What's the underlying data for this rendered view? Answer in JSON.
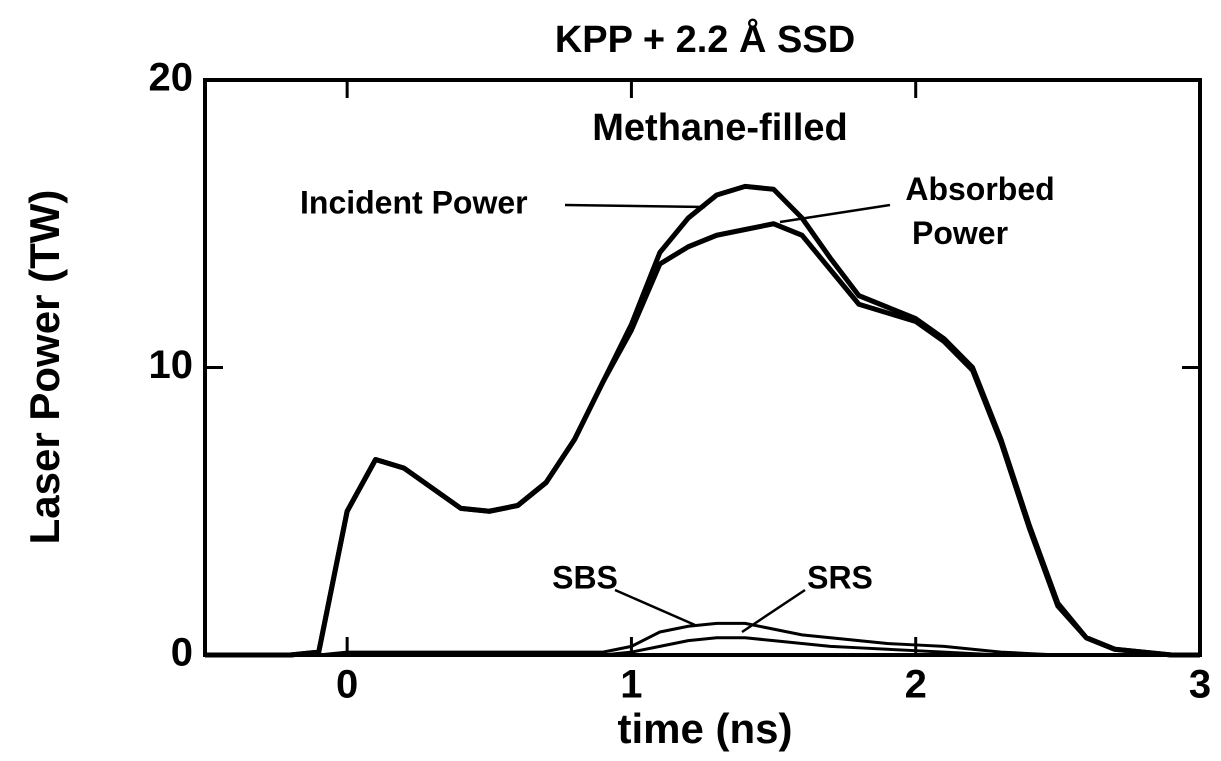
{
  "chart_data": {
    "type": "line",
    "title": "KPP + 2.2 Å SSD",
    "annotation": "Methane-filled",
    "x_label": "time (ns)",
    "y_label": "Laser Power (TW)",
    "x": [
      -0.5,
      -0.4,
      -0.3,
      -0.2,
      -0.1,
      0,
      0.1,
      0.2,
      0.3,
      0.4,
      0.5,
      0.6,
      0.7,
      0.8,
      0.9,
      1.0,
      1.1,
      1.2,
      1.3,
      1.4,
      1.5,
      1.6,
      1.7,
      1.8,
      1.9,
      2.0,
      2.1,
      2.2,
      2.3,
      2.4,
      2.5,
      2.6,
      2.7,
      2.8,
      2.9,
      3.0
    ],
    "series": [
      {
        "name": "Incident Power",
        "color": "#000000",
        "values": [
          0,
          0,
          0,
          0,
          0.1,
          5,
          6.8,
          6.5,
          5.8,
          5.1,
          5.0,
          5.2,
          6.0,
          7.5,
          9.5,
          11.5,
          14.0,
          15.2,
          16.0,
          16.3,
          16.2,
          15.2,
          13.8,
          12.5,
          12.1,
          11.7,
          11.0,
          10.0,
          7.5,
          4.5,
          1.8,
          0.6,
          0.2,
          0.1,
          0,
          0
        ]
      },
      {
        "name": "Absorbed Power",
        "color": "#000000",
        "values": [
          0,
          0,
          0,
          0,
          0.1,
          5,
          6.8,
          6.5,
          5.8,
          5.1,
          5.0,
          5.2,
          6.0,
          7.5,
          9.5,
          11.3,
          13.6,
          14.2,
          14.6,
          14.8,
          15.0,
          14.6,
          13.4,
          12.2,
          11.9,
          11.6,
          10.9,
          9.9,
          7.4,
          4.4,
          1.7,
          0.6,
          0.2,
          0.1,
          0,
          0
        ]
      },
      {
        "name": "SBS",
        "color": "#000000",
        "values": [
          0,
          0,
          0,
          0,
          0,
          0.1,
          0.1,
          0.1,
          0.1,
          0.1,
          0.1,
          0.1,
          0.1,
          0.1,
          0.1,
          0.3,
          0.8,
          1.0,
          1.1,
          1.1,
          0.9,
          0.7,
          0.6,
          0.5,
          0.4,
          0.35,
          0.3,
          0.2,
          0.1,
          0.05,
          0,
          0,
          0,
          0,
          0,
          0
        ]
      },
      {
        "name": "SRS",
        "color": "#000000",
        "values": [
          0,
          0,
          0,
          0,
          0,
          0,
          0,
          0,
          0,
          0,
          0,
          0,
          0,
          0,
          0,
          0.1,
          0.3,
          0.5,
          0.6,
          0.6,
          0.5,
          0.4,
          0.3,
          0.25,
          0.2,
          0.15,
          0.1,
          0.05,
          0,
          0,
          0,
          0,
          0,
          0,
          0,
          0
        ]
      }
    ],
    "xlim": [
      -0.5,
      3
    ],
    "ylim": [
      0,
      20
    ],
    "xticks": [
      0,
      1,
      2,
      3
    ],
    "yticks": [
      0,
      10,
      20
    ]
  }
}
